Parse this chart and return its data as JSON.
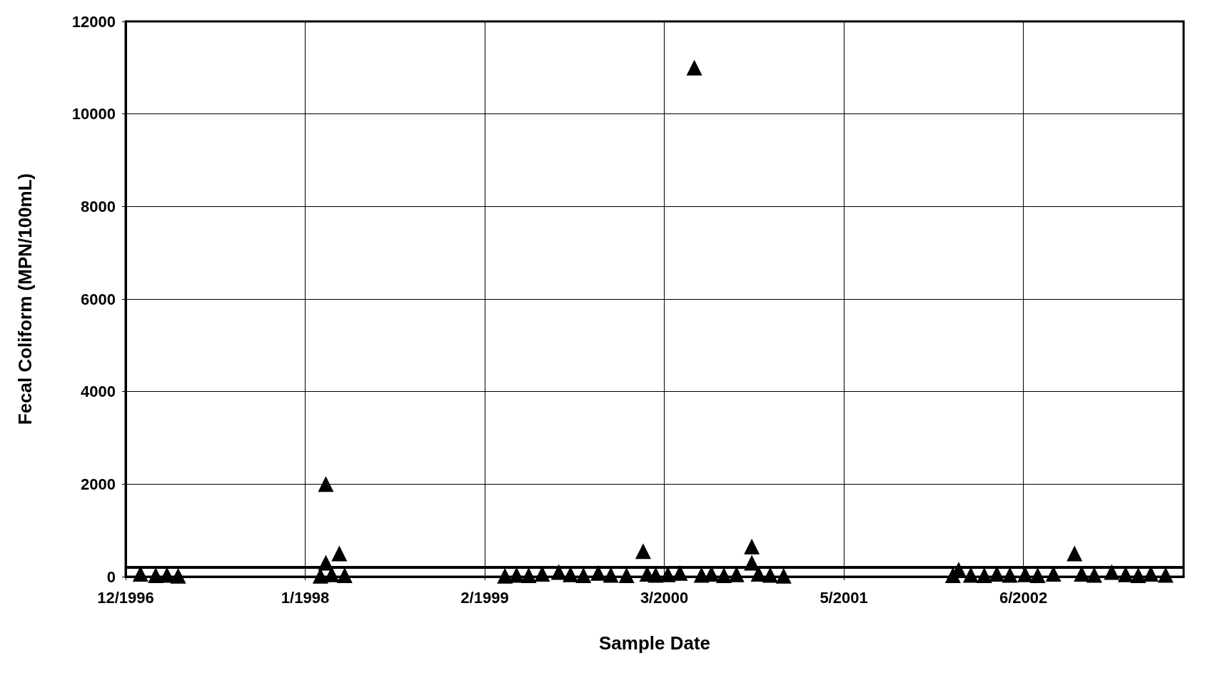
{
  "chart_data": {
    "type": "scatter",
    "xlabel": "Sample Date",
    "ylabel": "Fecal Coliform (MPN/100mL)",
    "xlim": [
      "1996-12-15",
      "2003-05-30"
    ],
    "xticks": [
      {
        "value": "1996-12-15",
        "label": "12/1996"
      },
      {
        "value": "1998-01-19",
        "label": "1/1998"
      },
      {
        "value": "1999-02-23",
        "label": "2/1999"
      },
      {
        "value": "2000-03-29",
        "label": "3/2000"
      },
      {
        "value": "2001-05-03",
        "label": "5/2001"
      },
      {
        "value": "2002-06-07",
        "label": "6/2002"
      }
    ],
    "ylim": [
      0,
      12000
    ],
    "yticks": [
      0,
      2000,
      4000,
      6000,
      8000,
      10000,
      12000
    ],
    "grid": true,
    "marker": "triangle",
    "ref_lines": [
      {
        "axis": "y",
        "value": 200,
        "label": null,
        "color": "#000000"
      }
    ],
    "series": [
      {
        "color": "#000000",
        "x": [
          "1997-01-17",
          "1997-02-20",
          "1997-03-17",
          "1997-04-11",
          "1998-02-22",
          "1998-03-06",
          "1998-03-06",
          "1998-03-19",
          "1998-04-05",
          "1998-04-17",
          "1999-04-09",
          "1999-05-05",
          "1999-06-01",
          "1999-07-01",
          "1999-08-07",
          "1999-09-02",
          "1999-10-01",
          "1999-11-03",
          "1999-12-01",
          "2000-01-05",
          "2000-02-11",
          "2000-02-20",
          "2000-03-10",
          "2000-04-06",
          "2000-05-03",
          "2000-06-04",
          "2000-06-20",
          "2000-07-12",
          "2000-08-09",
          "2000-09-06",
          "2000-10-10",
          "2000-10-10",
          "2000-10-25",
          "2000-11-20",
          "2000-12-20",
          "2002-01-01",
          "2002-01-14",
          "2002-02-10",
          "2002-03-12",
          "2002-04-09",
          "2002-05-08",
          "2002-06-11",
          "2002-07-09",
          "2002-08-13",
          "2002-09-29",
          "2002-10-15",
          "2002-11-12",
          "2002-12-21",
          "2003-01-21",
          "2003-02-18",
          "2003-03-18",
          "2003-04-20"
        ],
        "values": [
          60,
          30,
          40,
          20,
          20,
          2000,
          300,
          50,
          500,
          30,
          20,
          40,
          30,
          60,
          100,
          50,
          30,
          80,
          40,
          30,
          550,
          60,
          40,
          50,
          80,
          11000,
          40,
          60,
          30,
          50,
          650,
          300,
          60,
          40,
          20,
          30,
          150,
          40,
          30,
          60,
          40,
          50,
          30,
          60,
          500,
          60,
          40,
          100,
          50,
          30,
          60,
          40
        ]
      }
    ]
  }
}
